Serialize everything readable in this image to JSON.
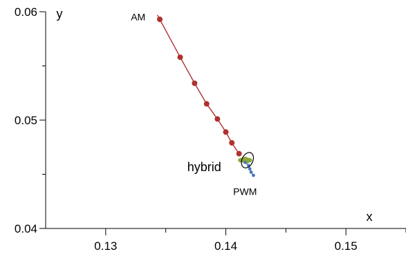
{
  "chart_data": {
    "type": "scatter",
    "title": "",
    "xlabel": "x",
    "ylabel": "y",
    "xlim": [
      0.125,
      0.155
    ],
    "ylim": [
      0.04,
      0.06
    ],
    "grid": false,
    "x_ticks": [
      {
        "value": 0.13,
        "label": "0.13"
      },
      {
        "value": 0.14,
        "label": "0.14"
      },
      {
        "value": 0.15,
        "label": "0.15"
      }
    ],
    "x_minor_ticks": [
      0.135,
      0.145,
      0.155
    ],
    "y_ticks": [
      {
        "value": 0.04,
        "label": "0.04"
      },
      {
        "value": 0.05,
        "label": "0.05"
      },
      {
        "value": 0.06,
        "label": "0.06"
      }
    ],
    "y_minor_ticks": [
      0.045,
      0.055
    ],
    "series": [
      {
        "name": "AM",
        "style": "line+markers",
        "color": "#b03030",
        "line_start": [
          0.1343,
          0.0597
        ],
        "points": [
          [
            0.1345,
            0.0593
          ],
          [
            0.1362,
            0.0558
          ],
          [
            0.1374,
            0.0534
          ],
          [
            0.1384,
            0.0515
          ],
          [
            0.1393,
            0.0501
          ],
          [
            0.14,
            0.0489
          ],
          [
            0.1405,
            0.0479
          ],
          [
            0.1411,
            0.0469
          ]
        ]
      },
      {
        "name": "hybrid",
        "style": "markers",
        "color": "#8aa838",
        "points": [
          [
            0.1413,
            0.0463
          ],
          [
            0.1416,
            0.0464
          ],
          [
            0.1419,
            0.0463
          ],
          [
            0.1417,
            0.0462
          ]
        ]
      },
      {
        "name": "PWM",
        "style": "line+markers",
        "color": "#4a78b8",
        "points": [
          [
            0.1416,
            0.0461
          ],
          [
            0.1419,
            0.0458
          ],
          [
            0.142,
            0.0455
          ],
          [
            0.1421,
            0.0452
          ],
          [
            0.1423,
            0.0449
          ]
        ]
      }
    ],
    "annotations": [
      {
        "id": "am",
        "text": "AM",
        "x": 0.1327,
        "y": 0.0592
      },
      {
        "id": "hybrid",
        "text": "hybrid",
        "x": 0.1382,
        "y": 0.0453
      },
      {
        "id": "pwm",
        "text": "PWM",
        "x": 0.1416,
        "y": 0.0431
      }
    ],
    "ellipse": {
      "cx": 0.1418,
      "cy": 0.0463,
      "rx": 0.00045,
      "ry": 0.00075,
      "angle": 25
    },
    "colors": {
      "axis": "#000000"
    }
  }
}
